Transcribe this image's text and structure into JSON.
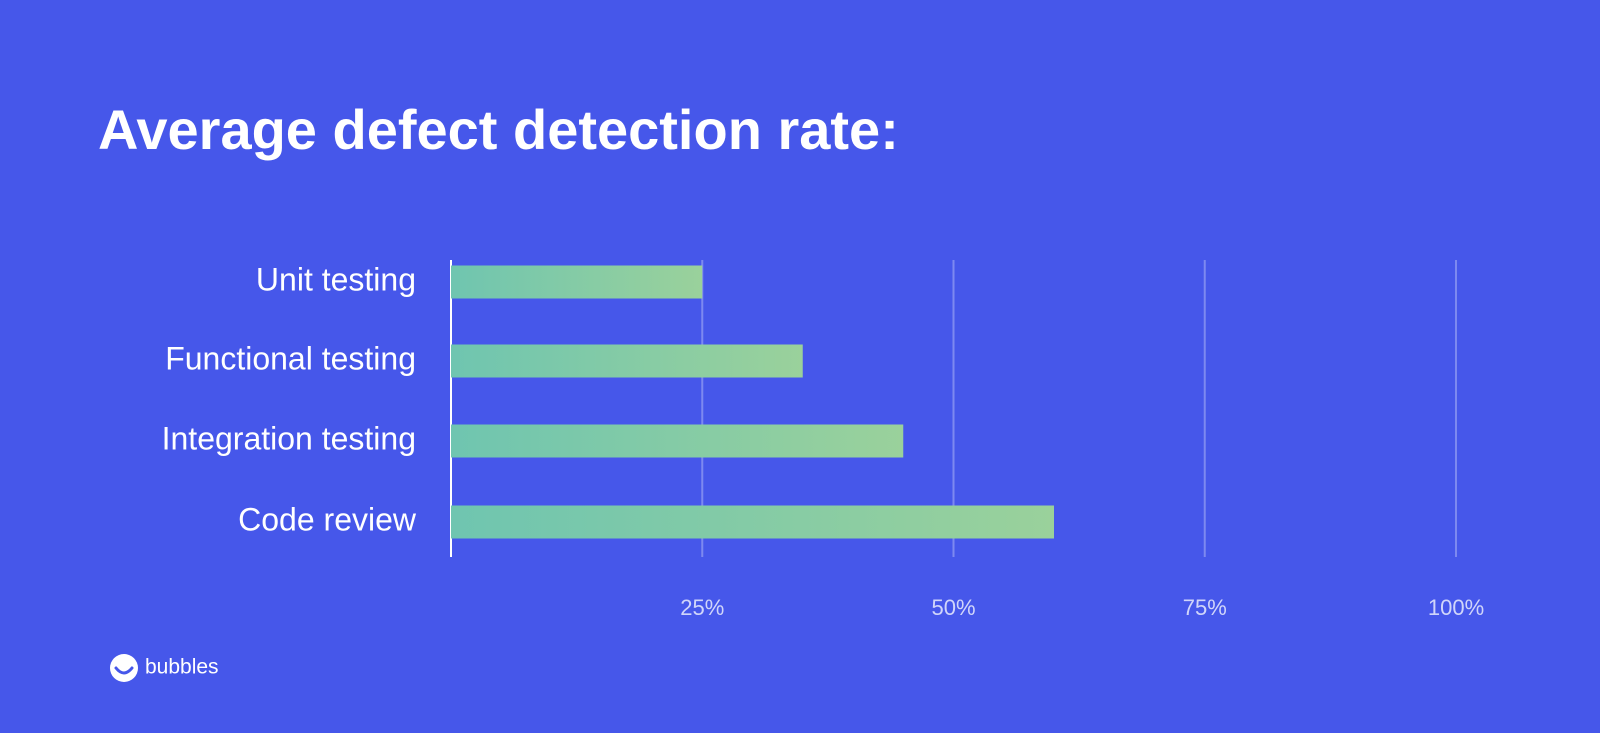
{
  "chart_data": {
    "type": "bar",
    "orientation": "horizontal",
    "title": "Average defect detection rate:",
    "categories": [
      "Unit testing",
      "Functional testing",
      "Integration testing",
      "Code review"
    ],
    "values": [
      25,
      35,
      45,
      60
    ],
    "gradient": [
      "#6fc5b0",
      "#9ad19b"
    ],
    "xlim": [
      0,
      100
    ],
    "xticks": [
      {
        "value": 25,
        "label": "25%"
      },
      {
        "value": 50,
        "label": "50%"
      },
      {
        "value": 75,
        "label": "75%"
      },
      {
        "value": 100,
        "label": "100%"
      }
    ],
    "grid": true
  },
  "logo": {
    "text": "bubbles"
  }
}
